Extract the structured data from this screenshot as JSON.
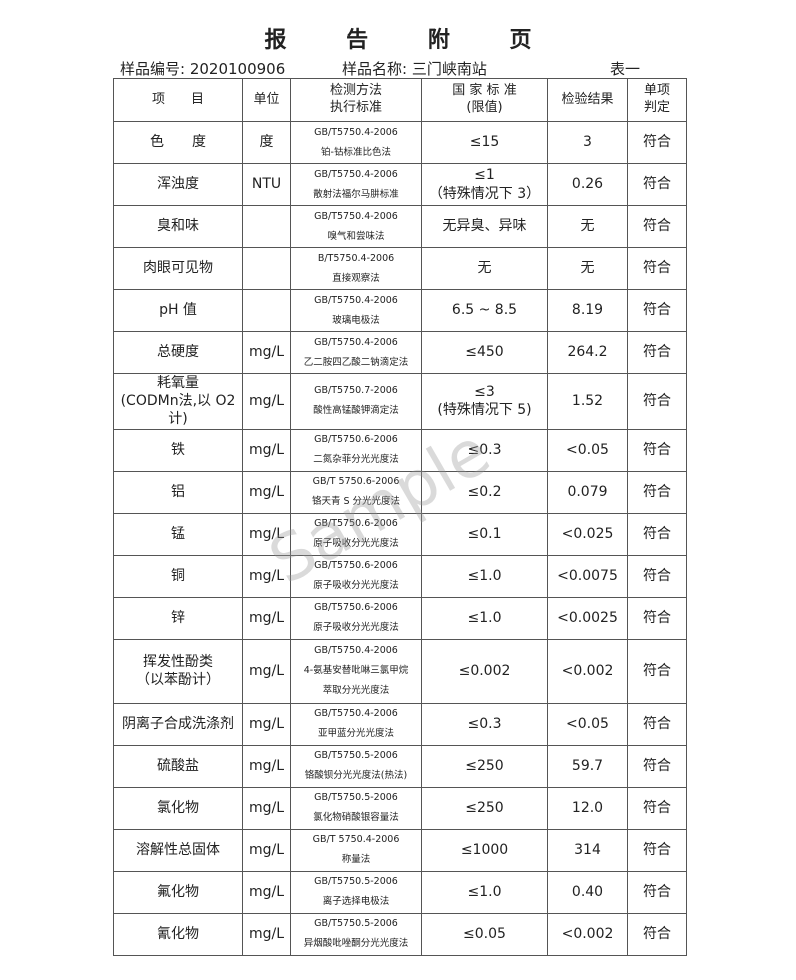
{
  "title": "报 告 附 页",
  "sample_no": "样品编号: 2020100906",
  "sample_name": "样品名称: 三门峡南站",
  "table_id": "表一",
  "watermark": "Sample",
  "headers": [
    "项　　目",
    "单位",
    "检测方法\n执行标准",
    "国 家 标 准\n(限值)",
    "检验结果",
    "单项\n判定"
  ],
  "rows": [
    {
      "item": "色　　度",
      "unit": "度",
      "std": "GB/T5750.4-2006",
      "method": "铂-钴标准比色法",
      "limit": "≤15",
      "result": "3",
      "judge": "符合"
    },
    {
      "item": "浑浊度",
      "unit": "NTU",
      "std": "GB/T5750.4-2006",
      "method": "散射法福尔马肼标准",
      "limit": "≤1\n（特殊情况下 3）",
      "result": "0.26",
      "judge": "符合"
    },
    {
      "item": "臭和味",
      "unit": "",
      "std": "GB/T5750.4-2006",
      "method": "嗅气和尝味法",
      "limit": "无异臭、异味",
      "result": "无",
      "judge": "符合"
    },
    {
      "item": "肉眼可见物",
      "unit": "",
      "std": "B/T5750.4-2006",
      "method": "直接观察法",
      "limit": "无",
      "result": "无",
      "judge": "符合"
    },
    {
      "item": "pH 值",
      "unit": "",
      "std": "GB/T5750.4-2006",
      "method": "玻璃电极法",
      "limit": "6.5 ~ 8.5",
      "result": "8.19",
      "judge": "符合"
    },
    {
      "item": "总硬度",
      "unit": "mg/L",
      "std": "GB/T5750.4-2006",
      "method": "乙二胺四乙酸二钠滴定法",
      "limit": "≤450",
      "result": "264.2",
      "judge": "符合"
    },
    {
      "item": "耗氧量\n(CODMn法,以 O2计)",
      "unit": "mg/L",
      "std": "GB/T5750.7-2006",
      "method": "酸性高锰酸钾滴定法",
      "limit": "≤3\n(特殊情况下 5)",
      "result": "1.52",
      "judge": "符合"
    },
    {
      "item": "铁",
      "unit": "mg/L",
      "std": "GB/T5750.6-2006",
      "method": "二氮杂菲分光光度法",
      "limit": "≤0.3",
      "result": "<0.05",
      "judge": "符合"
    },
    {
      "item": "铝",
      "unit": "mg/L",
      "std": "GB/T 5750.6-2006",
      "method": "铬天青 S 分光光度法",
      "limit": "≤0.2",
      "result": "0.079",
      "judge": "符合"
    },
    {
      "item": "锰",
      "unit": "mg/L",
      "std": "GB/T5750.6-2006",
      "method": "原子吸收分光光度法",
      "limit": "≤0.1",
      "result": "<0.025",
      "judge": "符合"
    },
    {
      "item": "铜",
      "unit": "mg/L",
      "std": "GB/T5750.6-2006",
      "method": "原子吸收分光光度法",
      "limit": "≤1.0",
      "result": "<0.0075",
      "judge": "符合"
    },
    {
      "item": "锌",
      "unit": "mg/L",
      "std": "GB/T5750.6-2006",
      "method": "原子吸收分光光度法",
      "limit": "≤1.0",
      "result": "<0.0025",
      "judge": "符合"
    },
    {
      "item": "挥发性酚类\n（以苯酚计）",
      "unit": "mg/L",
      "std": "GB/T5750.4-2006",
      "method": "4-氨基安替吡啉三氯甲烷\n萃取分光光度法",
      "limit": "≤0.002",
      "result": "<0.002",
      "judge": "符合"
    },
    {
      "item": "阴离子合成洗涤剂",
      "unit": "mg/L",
      "std": "GB/T5750.4-2006",
      "method": "亚甲蓝分光光度法",
      "limit": "≤0.3",
      "result": "<0.05",
      "judge": "符合"
    },
    {
      "item": "硫酸盐",
      "unit": "mg/L",
      "std": "GB/T5750.5-2006",
      "method": "铬酸钡分光光度法(热法)",
      "limit": "≤250",
      "result": "59.7",
      "judge": "符合"
    },
    {
      "item": "氯化物",
      "unit": "mg/L",
      "std": "GB/T5750.5-2006",
      "method": "氯化物硝酸银容量法",
      "limit": "≤250",
      "result": "12.0",
      "judge": "符合"
    },
    {
      "item": "溶解性总固体",
      "unit": "mg/L",
      "std": "GB/T 5750.4-2006",
      "method": "称量法",
      "limit": "≤1000",
      "result": "314",
      "judge": "符合"
    },
    {
      "item": "氟化物",
      "unit": "mg/L",
      "std": "GB/T5750.5-2006",
      "method": "离子选择电极法",
      "limit": "≤1.0",
      "result": "0.40",
      "judge": "符合"
    },
    {
      "item": "氰化物",
      "unit": "mg/L",
      "std": "GB/T5750.5-2006",
      "method": "异烟酸吡唑酮分光光度法",
      "limit": "≤0.05",
      "result": "<0.002",
      "judge": "符合"
    }
  ]
}
